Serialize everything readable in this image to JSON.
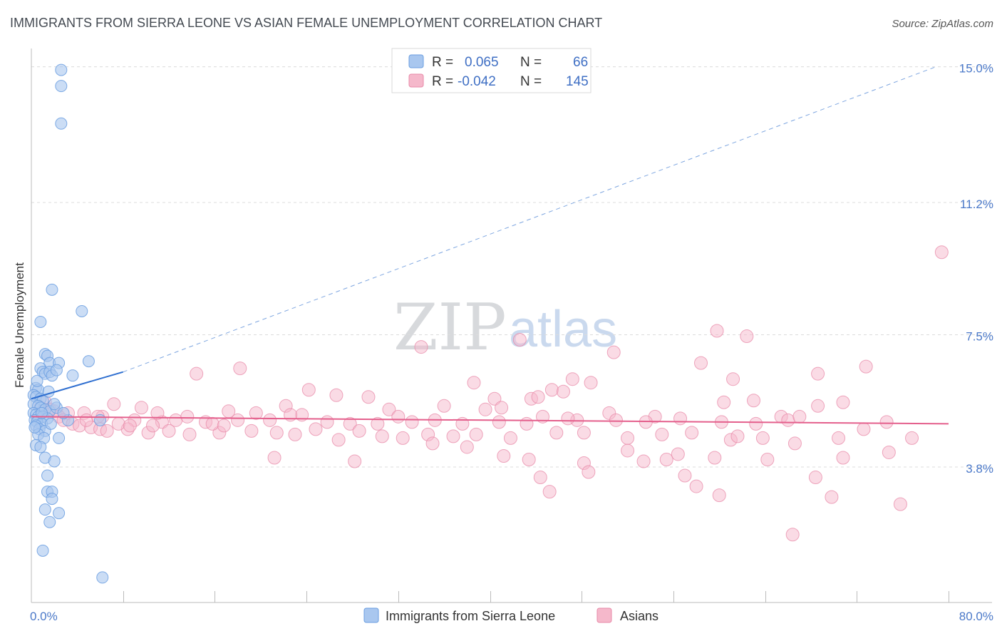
{
  "chart_data": {
    "type": "scatter",
    "title": "IMMIGRANTS FROM SIERRA LEONE VS ASIAN FEMALE UNEMPLOYMENT CORRELATION CHART",
    "source": "Source: ZipAtlas.com",
    "xlabel": "",
    "ylabel": "Female Unemployment",
    "xlim": [
      0,
      80
    ],
    "ylim": [
      0,
      15.5
    ],
    "x_tick_labels": {
      "left": "0.0%",
      "right": "80.0%"
    },
    "y_ticks": [
      {
        "value": 3.8,
        "label": "3.8%"
      },
      {
        "value": 7.5,
        "label": "7.5%"
      },
      {
        "value": 11.2,
        "label": "11.2%"
      },
      {
        "value": 15.0,
        "label": "15.0%"
      }
    ],
    "legend": {
      "rows": [
        {
          "r_label": "R = ",
          "r_value": "0.065",
          "n_label": "N = ",
          "n_value": "66",
          "color": "#a9c7ef"
        },
        {
          "r_label": "R = ",
          "r_value": "-0.042",
          "n_label": "N = ",
          "n_value": "145",
          "color": "#f5b8cb"
        }
      ]
    },
    "series": [
      {
        "name": "Immigrants from Sierra Leone",
        "color": "#6a9ee0",
        "fill": "#a9c7ef",
        "trend": {
          "solid": [
            [
              0,
              5.7
            ],
            [
              8,
              6.45
            ]
          ],
          "dashed": [
            [
              8,
              6.45
            ],
            [
              79,
              15.0
            ]
          ],
          "color": "#2f6fd0"
        },
        "points": [
          [
            2.6,
            14.9
          ],
          [
            2.6,
            14.45
          ],
          [
            2.6,
            13.4
          ],
          [
            1.8,
            8.75
          ],
          [
            4.4,
            8.15
          ],
          [
            0.8,
            7.85
          ],
          [
            5.0,
            6.75
          ],
          [
            1.2,
            6.95
          ],
          [
            1.4,
            6.9
          ],
          [
            1.6,
            6.7
          ],
          [
            2.4,
            6.7
          ],
          [
            0.8,
            6.55
          ],
          [
            1.0,
            6.45
          ],
          [
            1.2,
            6.4
          ],
          [
            1.6,
            6.45
          ],
          [
            1.8,
            6.35
          ],
          [
            2.2,
            6.5
          ],
          [
            3.6,
            6.35
          ],
          [
            0.4,
            6.0
          ],
          [
            0.6,
            5.95
          ],
          [
            0.2,
            5.8
          ],
          [
            0.4,
            5.75
          ],
          [
            0.8,
            5.7
          ],
          [
            1.0,
            5.65
          ],
          [
            0.2,
            5.55
          ],
          [
            0.6,
            5.5
          ],
          [
            0.8,
            5.45
          ],
          [
            1.2,
            5.4
          ],
          [
            1.6,
            5.35
          ],
          [
            2.2,
            5.45
          ],
          [
            0.2,
            5.3
          ],
          [
            0.4,
            5.25
          ],
          [
            0.6,
            5.2
          ],
          [
            1.0,
            5.2
          ],
          [
            1.4,
            5.15
          ],
          [
            0.3,
            5.1
          ],
          [
            0.5,
            5.05
          ],
          [
            0.9,
            5.0
          ],
          [
            3.2,
            5.1
          ],
          [
            0.4,
            4.95
          ],
          [
            0.7,
            4.85
          ],
          [
            1.2,
            4.8
          ],
          [
            0.6,
            4.7
          ],
          [
            1.1,
            4.6
          ],
          [
            2.4,
            4.6
          ],
          [
            0.4,
            4.4
          ],
          [
            0.8,
            4.35
          ],
          [
            1.2,
            4.05
          ],
          [
            2.0,
            3.95
          ],
          [
            1.4,
            3.55
          ],
          [
            1.4,
            3.1
          ],
          [
            1.8,
            3.1
          ],
          [
            1.8,
            2.9
          ],
          [
            1.2,
            2.6
          ],
          [
            2.4,
            2.5
          ],
          [
            1.6,
            2.25
          ],
          [
            1.0,
            1.45
          ],
          [
            6.2,
            0.7
          ],
          [
            6.0,
            5.1
          ],
          [
            2.8,
            5.3
          ],
          [
            0.5,
            6.2
          ],
          [
            1.5,
            5.9
          ],
          [
            0.9,
            5.3
          ],
          [
            1.7,
            5.0
          ],
          [
            0.3,
            4.9
          ],
          [
            2.0,
            5.55
          ]
        ]
      },
      {
        "name": "Asians",
        "color": "#e88aa8",
        "fill": "#f5b8cb",
        "trend": {
          "solid": [
            [
              0,
              5.2
            ],
            [
              80,
              5.0
            ]
          ],
          "color": "#e45f8c"
        },
        "points": [
          [
            79.4,
            9.8
          ],
          [
            59.8,
            7.6
          ],
          [
            62.4,
            7.45
          ],
          [
            42.6,
            7.35
          ],
          [
            34.0,
            7.15
          ],
          [
            50.8,
            7.0
          ],
          [
            58.4,
            6.7
          ],
          [
            72.8,
            6.6
          ],
          [
            14.4,
            6.4
          ],
          [
            18.2,
            6.55
          ],
          [
            68.6,
            6.4
          ],
          [
            61.2,
            6.25
          ],
          [
            47.2,
            6.25
          ],
          [
            48.8,
            6.15
          ],
          [
            38.6,
            6.15
          ],
          [
            45.4,
            5.95
          ],
          [
            46.4,
            5.9
          ],
          [
            24.2,
            5.95
          ],
          [
            26.6,
            5.8
          ],
          [
            29.4,
            5.75
          ],
          [
            40.4,
            5.7
          ],
          [
            43.6,
            5.7
          ],
          [
            44.2,
            5.75
          ],
          [
            60.4,
            5.6
          ],
          [
            70.8,
            5.6
          ],
          [
            68.6,
            5.5
          ],
          [
            36.0,
            5.5
          ],
          [
            22.2,
            5.5
          ],
          [
            41.0,
            5.45
          ],
          [
            31.2,
            5.4
          ],
          [
            17.2,
            5.35
          ],
          [
            19.6,
            5.3
          ],
          [
            23.6,
            5.25
          ],
          [
            32.0,
            5.2
          ],
          [
            50.4,
            5.3
          ],
          [
            7.2,
            5.55
          ],
          [
            6.2,
            5.2
          ],
          [
            54.4,
            5.2
          ],
          [
            56.6,
            5.15
          ],
          [
            65.4,
            5.2
          ],
          [
            3.2,
            5.3
          ],
          [
            4.6,
            5.3
          ],
          [
            9.0,
            5.1
          ],
          [
            11.4,
            5.05
          ],
          [
            12.6,
            5.1
          ],
          [
            15.2,
            5.05
          ],
          [
            18.0,
            5.1
          ],
          [
            20.8,
            5.1
          ],
          [
            25.8,
            5.05
          ],
          [
            27.8,
            5.0
          ],
          [
            30.2,
            5.0
          ],
          [
            33.2,
            5.05
          ],
          [
            35.2,
            5.1
          ],
          [
            37.6,
            5.0
          ],
          [
            40.8,
            5.05
          ],
          [
            43.2,
            5.0
          ],
          [
            47.6,
            5.1
          ],
          [
            51.0,
            5.1
          ],
          [
            53.6,
            5.05
          ],
          [
            60.2,
            5.05
          ],
          [
            63.2,
            5.0
          ],
          [
            66.0,
            5.1
          ],
          [
            1.2,
            5.6
          ],
          [
            0.8,
            5.45
          ],
          [
            1.6,
            5.4
          ],
          [
            2.0,
            5.35
          ],
          [
            2.4,
            5.2
          ],
          [
            2.8,
            5.1
          ],
          [
            3.6,
            5.0
          ],
          [
            4.2,
            4.95
          ],
          [
            5.2,
            4.9
          ],
          [
            6.0,
            4.85
          ],
          [
            6.6,
            4.8
          ],
          [
            8.4,
            4.85
          ],
          [
            10.2,
            4.75
          ],
          [
            12.0,
            4.8
          ],
          [
            13.8,
            4.7
          ],
          [
            16.4,
            4.75
          ],
          [
            19.2,
            4.8
          ],
          [
            21.4,
            4.75
          ],
          [
            23.0,
            4.7
          ],
          [
            24.8,
            4.85
          ],
          [
            28.6,
            4.8
          ],
          [
            30.6,
            4.65
          ],
          [
            32.4,
            4.6
          ],
          [
            34.6,
            4.7
          ],
          [
            36.8,
            4.65
          ],
          [
            38.8,
            4.7
          ],
          [
            41.8,
            4.6
          ],
          [
            45.8,
            4.75
          ],
          [
            48.2,
            4.75
          ],
          [
            52.0,
            4.6
          ],
          [
            55.0,
            4.7
          ],
          [
            57.6,
            4.75
          ],
          [
            61.0,
            4.55
          ],
          [
            63.8,
            4.6
          ],
          [
            66.6,
            4.45
          ],
          [
            70.4,
            4.6
          ],
          [
            76.8,
            4.6
          ],
          [
            72.6,
            4.85
          ],
          [
            26.8,
            4.55
          ],
          [
            35.0,
            4.45
          ],
          [
            38.0,
            4.35
          ],
          [
            41.2,
            4.1
          ],
          [
            43.4,
            4.0
          ],
          [
            48.2,
            3.9
          ],
          [
            53.4,
            3.95
          ],
          [
            55.4,
            4.0
          ],
          [
            59.6,
            4.05
          ],
          [
            64.2,
            4.0
          ],
          [
            70.8,
            4.05
          ],
          [
            74.8,
            4.2
          ],
          [
            52.0,
            4.25
          ],
          [
            56.4,
            4.15
          ],
          [
            21.2,
            4.05
          ],
          [
            28.2,
            3.95
          ],
          [
            44.4,
            3.5
          ],
          [
            45.2,
            3.1
          ],
          [
            48.6,
            3.65
          ],
          [
            57.0,
            3.55
          ],
          [
            60.0,
            3.0
          ],
          [
            68.4,
            3.5
          ],
          [
            69.8,
            2.95
          ],
          [
            75.8,
            2.75
          ],
          [
            66.4,
            1.9
          ],
          [
            58.0,
            3.25
          ],
          [
            61.6,
            4.65
          ],
          [
            63.0,
            5.65
          ],
          [
            67.0,
            5.2
          ],
          [
            74.6,
            5.05
          ],
          [
            39.6,
            5.4
          ],
          [
            22.6,
            5.25
          ],
          [
            9.6,
            5.45
          ],
          [
            11.0,
            5.3
          ],
          [
            13.6,
            5.2
          ],
          [
            15.8,
            5.0
          ],
          [
            4.8,
            5.1
          ],
          [
            5.8,
            5.2
          ],
          [
            7.6,
            5.0
          ],
          [
            8.6,
            4.95
          ],
          [
            10.6,
            4.95
          ],
          [
            44.6,
            5.2
          ],
          [
            46.8,
            5.15
          ],
          [
            16.8,
            4.95
          ]
        ]
      }
    ],
    "bottom_legend": [
      "Immigrants from Sierra Leone",
      "Asians"
    ],
    "watermark": {
      "zip": "ZIP",
      "atlas": "atlas"
    }
  }
}
